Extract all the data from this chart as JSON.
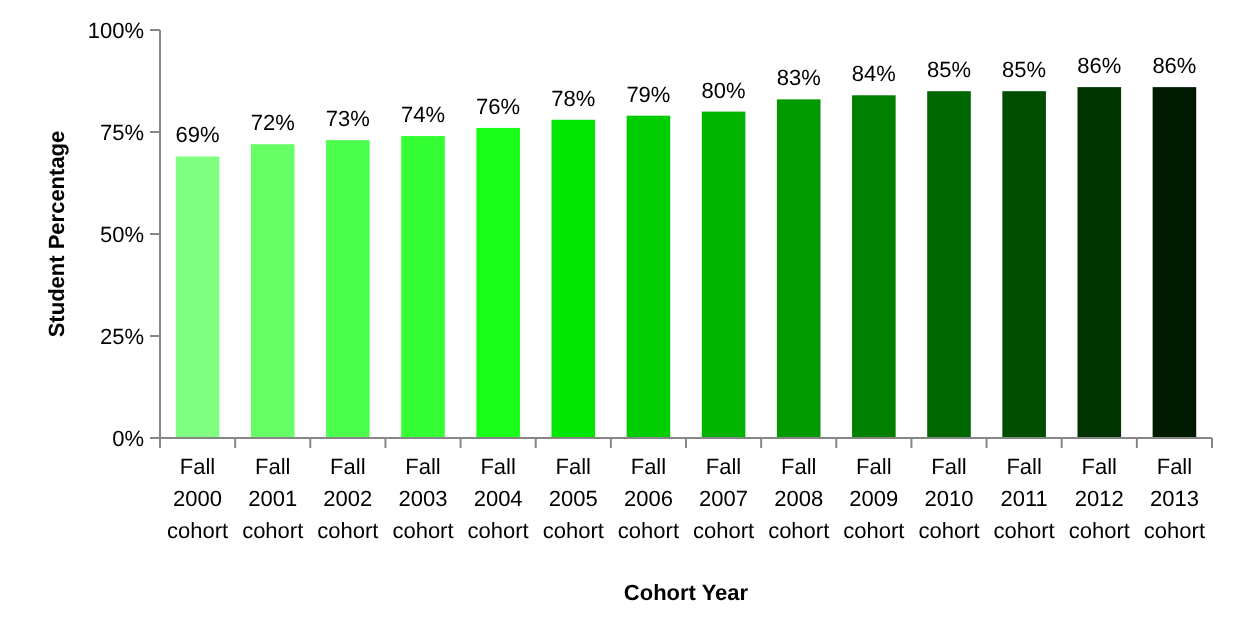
{
  "chart_data": {
    "type": "bar",
    "xlabel": "Cohort Year",
    "ylabel": "Student Percentage",
    "categories": [
      "Fall 2000 cohort",
      "Fall 2001 cohort",
      "Fall 2002 cohort",
      "Fall 2003 cohort",
      "Fall 2004 cohort",
      "Fall 2005 cohort",
      "Fall 2006 cohort",
      "Fall 2007 cohort",
      "Fall 2008 cohort",
      "Fall 2009 cohort",
      "Fall 2010 cohort",
      "Fall 2011 cohort",
      "Fall 2012 cohort",
      "Fall 2013 cohort"
    ],
    "values": [
      69,
      72,
      73,
      74,
      76,
      78,
      79,
      80,
      83,
      84,
      85,
      85,
      86,
      86
    ],
    "value_labels": [
      "69%",
      "72%",
      "73%",
      "74%",
      "76%",
      "78%",
      "79%",
      "80%",
      "83%",
      "84%",
      "85%",
      "85%",
      "86%",
      "86%"
    ],
    "colors": [
      "#80ff80",
      "#66ff66",
      "#4dff4d",
      "#33ff33",
      "#1aff1a",
      "#00e600",
      "#00cc00",
      "#00b300",
      "#009900",
      "#008000",
      "#006600",
      "#004d00",
      "#003300",
      "#001a00"
    ],
    "ylim": [
      0,
      100
    ],
    "yticks": [
      {
        "value": 0,
        "label": "0%"
      },
      {
        "value": 25,
        "label": "25%"
      },
      {
        "value": 50,
        "label": "50%"
      },
      {
        "value": 75,
        "label": "75%"
      },
      {
        "value": 100,
        "label": "100%"
      }
    ],
    "grid": false
  }
}
